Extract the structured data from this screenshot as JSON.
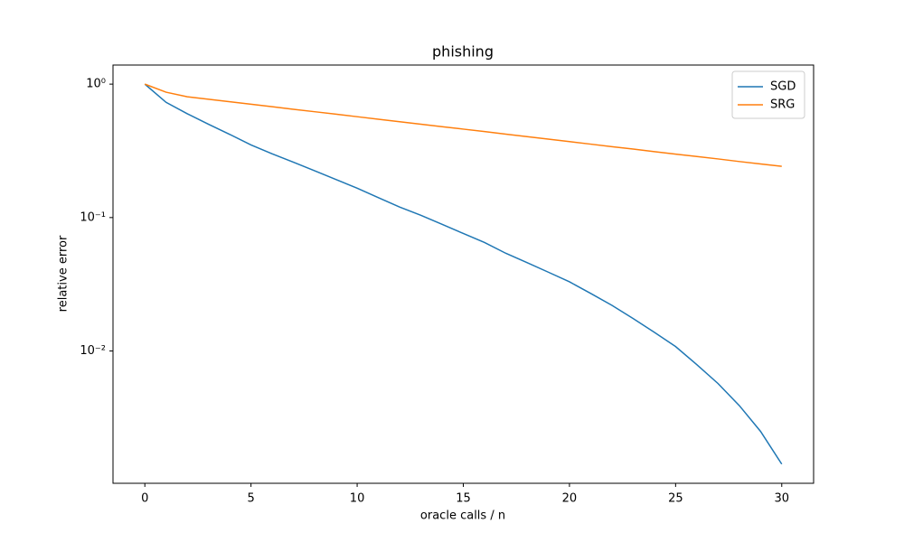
{
  "chart_data": {
    "type": "line",
    "title": "phishing",
    "xlabel": "oracle calls / n",
    "ylabel": "relative error",
    "x": [
      0,
      1,
      2,
      3,
      4,
      5,
      6,
      7,
      8,
      9,
      10,
      11,
      12,
      13,
      14,
      15,
      16,
      17,
      18,
      19,
      20,
      21,
      22,
      23,
      24,
      25,
      26,
      27,
      28,
      29,
      30
    ],
    "series": [
      {
        "name": "SGD",
        "color": "#1f77b4",
        "values": [
          1.0,
          0.73,
          0.6,
          0.5,
          0.42,
          0.35,
          0.3,
          0.26,
          0.224,
          0.193,
          0.166,
          0.141,
          0.12,
          0.104,
          0.089,
          0.076,
          0.065,
          0.054,
          0.046,
          0.039,
          0.033,
          0.027,
          0.022,
          0.0175,
          0.0138,
          0.0108,
          0.0079,
          0.0057,
          0.0039,
          0.0025,
          0.00142
        ]
      },
      {
        "name": "SRG",
        "color": "#ff7f0e",
        "values": [
          1.0,
          0.87,
          0.804,
          0.77,
          0.738,
          0.707,
          0.677,
          0.648,
          0.621,
          0.595,
          0.57,
          0.546,
          0.523,
          0.501,
          0.48,
          0.46,
          0.441,
          0.422,
          0.404,
          0.387,
          0.371,
          0.355,
          0.34,
          0.326,
          0.312,
          0.299,
          0.287,
          0.275,
          0.263,
          0.252,
          0.242
        ]
      }
    ],
    "xlim": [
      -1.5,
      31.5
    ],
    "xticks": [
      0,
      5,
      10,
      15,
      20,
      25,
      30
    ],
    "ylim": [
      0.00102,
      1.39
    ],
    "ylog": true,
    "yticks": [
      {
        "value": 1,
        "label": "10⁰"
      },
      {
        "value": 0.1,
        "label": "10⁻¹"
      },
      {
        "value": 0.01,
        "label": "10⁻²"
      }
    ],
    "grid": false,
    "legend": "upper right"
  }
}
